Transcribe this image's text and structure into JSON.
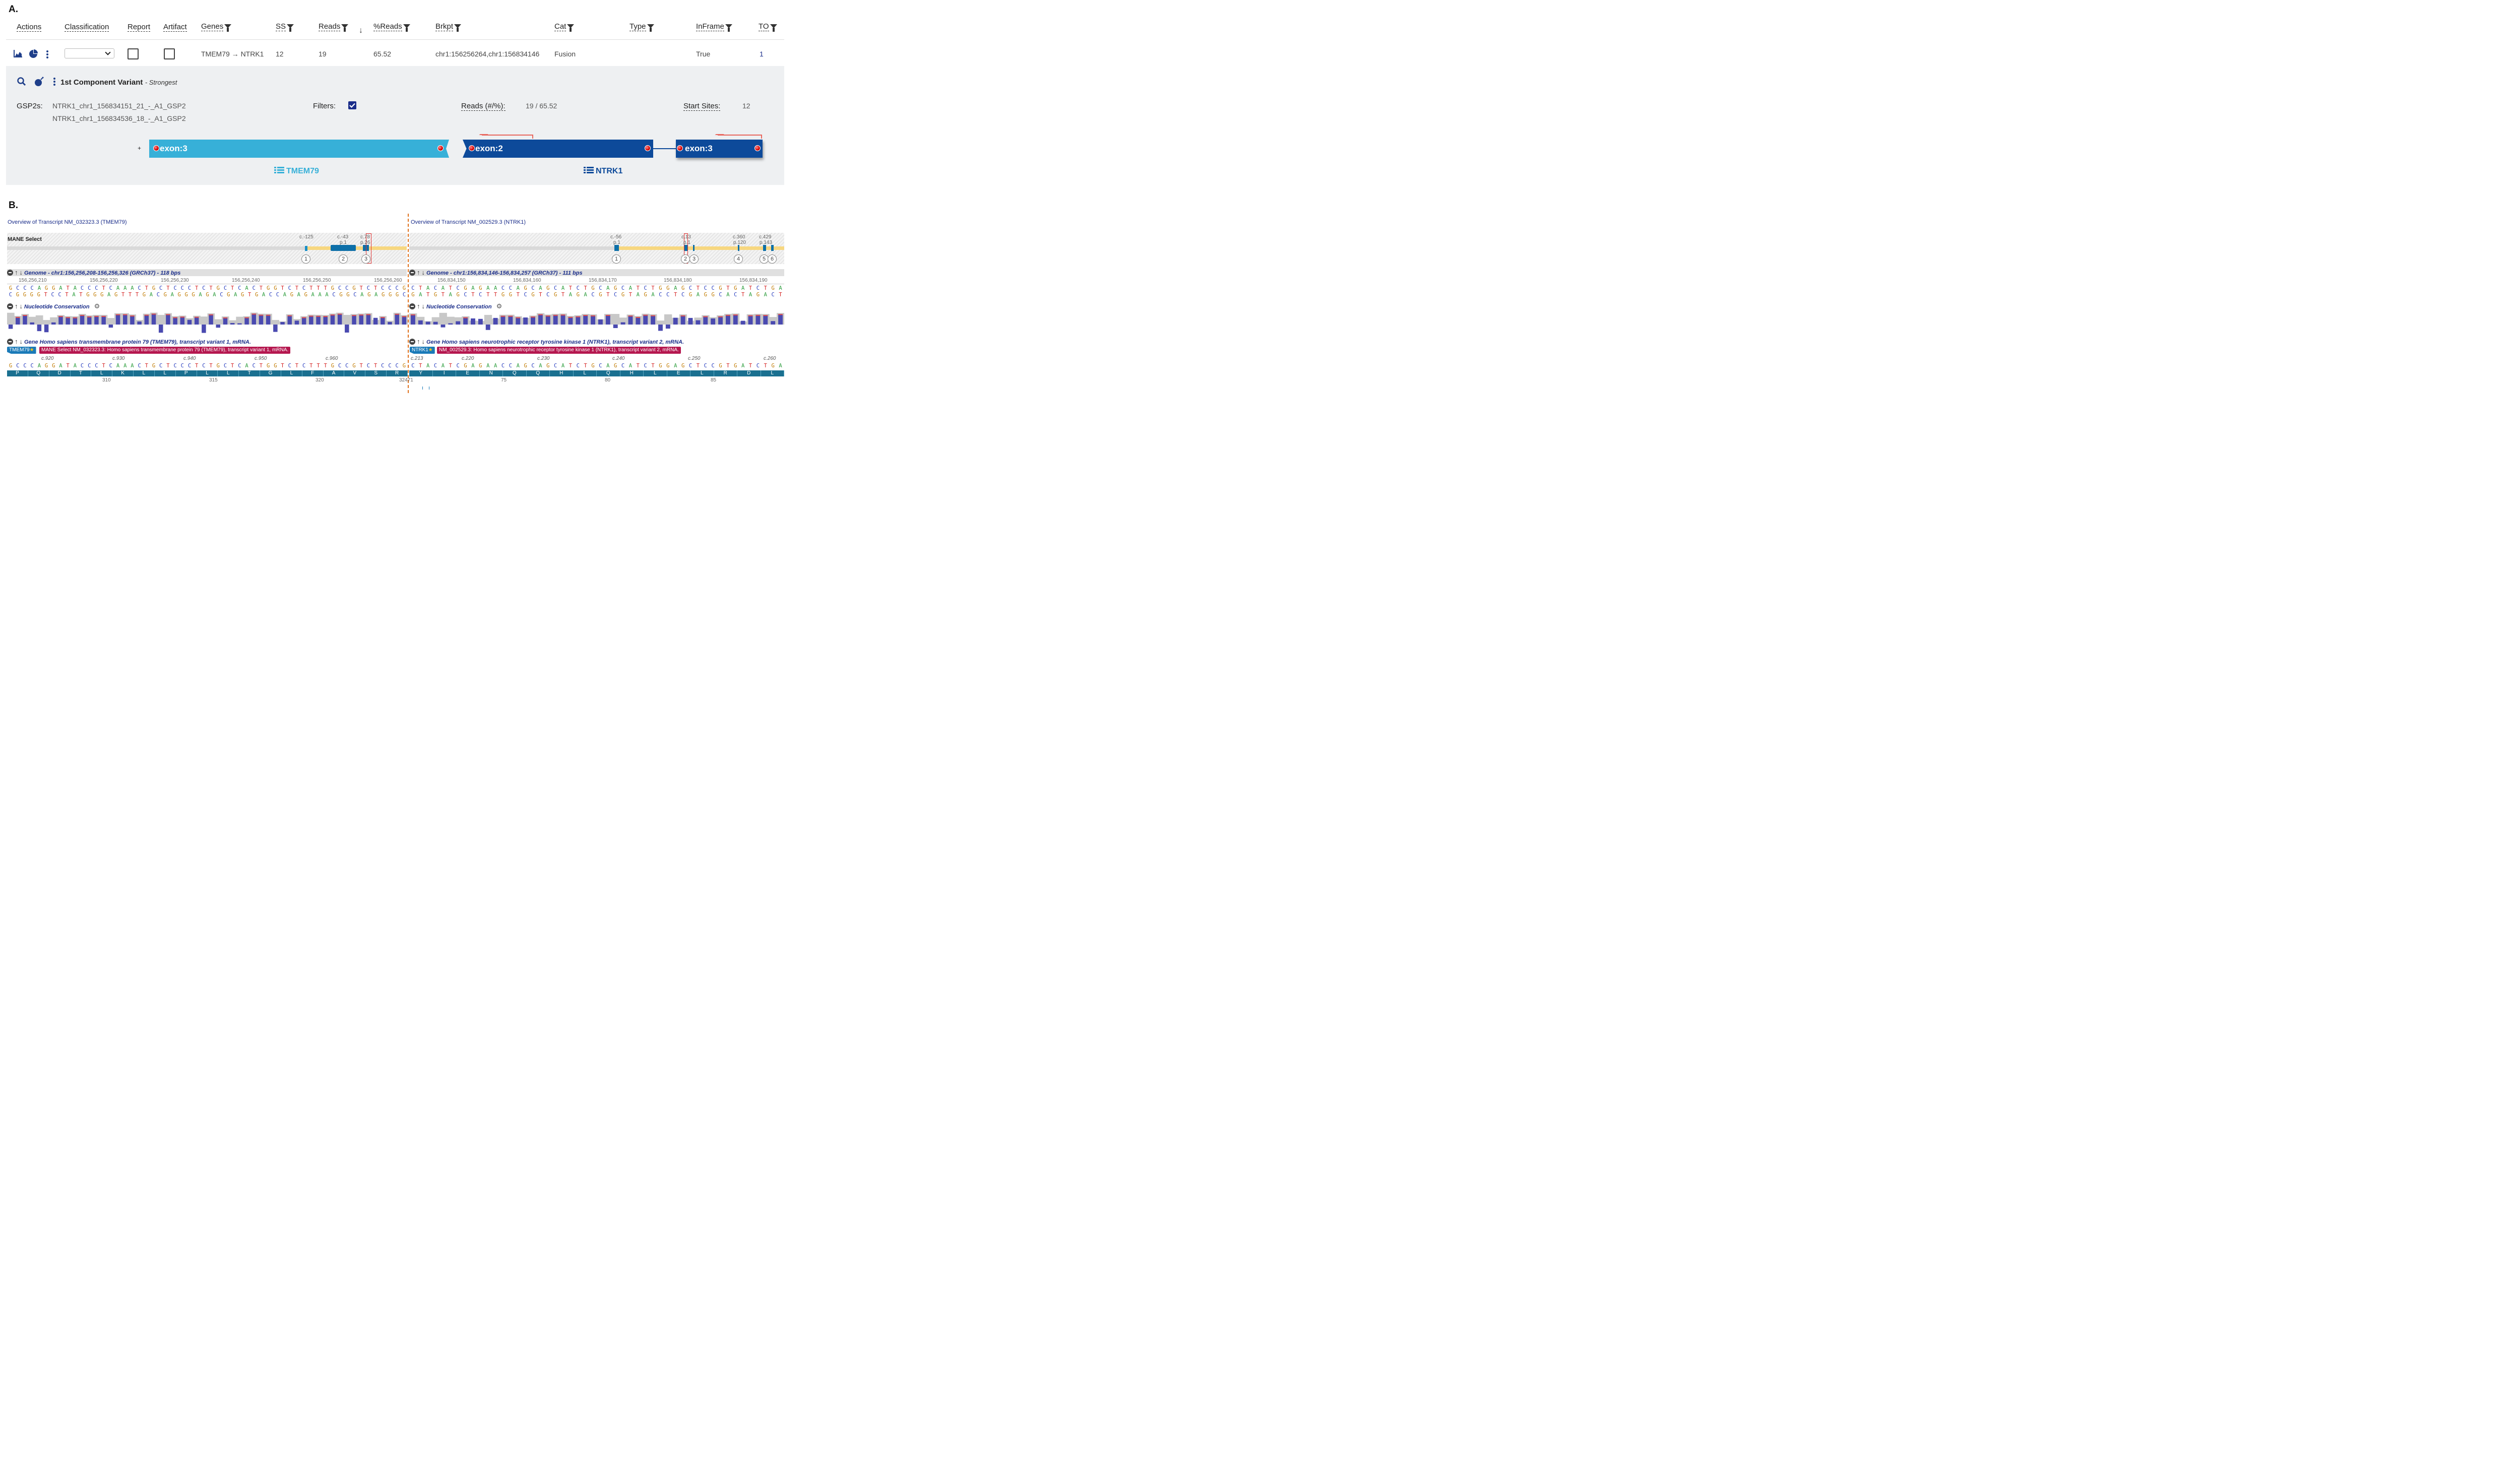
{
  "colors": {
    "tmem79_blue": "#37b0d8",
    "ntrk1_blue": "#0d4a9a",
    "red_dot": "#d40000",
    "mane_yellow": "#f7d780",
    "transcript_blue": "#1a7090",
    "conservation_gray": "#c8c8c8",
    "conservation_bar": "#4a4ab0",
    "tag_magenta": "#b5174f",
    "junction_orange": "#e0701a"
  },
  "panelA": {
    "label": "A.",
    "headers": {
      "actions": "Actions",
      "classification": "Classification",
      "report": "Report",
      "artifact": "Artifact",
      "genes": "Genes",
      "ss": "SS",
      "reads": "Reads",
      "sort_arrow": "↓",
      "pct_reads": "%Reads",
      "brkpt": "Brkpt",
      "cat": "Cat",
      "type": "Type",
      "inframe": "InFrame",
      "to": "TO"
    },
    "row": {
      "genes": "TMEM79 → NTRK1",
      "ss": "12",
      "reads": "19",
      "pct_reads": "65.52",
      "brkpt": "chr1:156256264,chr1:156834146",
      "cat": "Fusion",
      "type": "",
      "inframe": "True",
      "to": "1"
    },
    "component": {
      "title": "1st Component Variant",
      "subtitle": "- Strongest",
      "gsp2_label": "GSP2s:",
      "gsp2_1": "NTRK1_chr1_156834151_21_-_A1_GSP2",
      "gsp2_2": "NTRK1_chr1_156834536_18_-_A1_GSP2",
      "filters_label": "Filters:",
      "reads_label": "Reads (#/%):",
      "reads_value": "19 / 65.52",
      "start_label": "Start Sites:",
      "start_value": "12",
      "strand": "+",
      "exon_tmem79": "exon:3",
      "exon_ntrk1_a": "exon:2",
      "exon_ntrk1_b": "exon:3",
      "gene_left": "TMEM79",
      "gene_right": "NTRK1"
    }
  },
  "panelB": {
    "label": "B.",
    "left": {
      "overview": "Overview of Transcript NM_032323.3 (TMEM79)",
      "mane": "MANE Select",
      "cpos": [
        "c.-125",
        "c.-43",
        "c.78"
      ],
      "ppos": [
        "p.1",
        "p.26"
      ],
      "exons": [
        "1",
        "2",
        "3"
      ],
      "genome_hdr": "Genome - chr1:156,256,208-156,256,326 (GRCh37) - 118 bps",
      "ruler": [
        "156,256,210",
        "156,256,220",
        "156,256,230",
        "156,256,240",
        "156,256,250",
        "156,256,260"
      ],
      "seq_top": "GCCCAGGATACCCTCAAACTGCTCCCTCTGCTCACTGGTCTCTTTGCCGTCTCCCG",
      "seq_bot": "CGGGGTCCTATGGGAGTTTGACGAGGGAGACGAGTGACCAGAGAAACGGCAGAGGGC",
      "cons_hdr": "Nucleotide Conservation",
      "gene_hdr": "Gene Homo sapiens transmembrane protein 79 (TMEM79), transcript variant 1, mRNA.",
      "gene_tag": "TMEM79",
      "star": "★",
      "tx_tag": "MANE Select NM_032323.3: Homo sapiens transmembrane protein 79 (TMEM79), transcript variant 1, mRNA.",
      "c_ruler": [
        "c.920",
        "c.930",
        "c.940",
        "c.950",
        "c.960"
      ],
      "seq_tx": "GCCCAGGATACCCTCAAACTGCTCCCTCTGCTCACTGGTCTCTTTGCCGTCTCCCG",
      "aa": [
        "P",
        "Q",
        "D",
        "T",
        "L",
        "K",
        "L",
        "L",
        "P",
        "L",
        "L",
        "T",
        "G",
        "L",
        "F",
        "A",
        "V",
        "S",
        "R"
      ],
      "aa_pos": [
        "310",
        "315",
        "320",
        "32471"
      ]
    },
    "right": {
      "overview": "Overview of Transcript NM_002529.3 (NTRK1)",
      "cpos": [
        "c.-56",
        "c.13",
        "c.360",
        "c.429"
      ],
      "ppos": [
        "p.1",
        "p.1",
        "p.120",
        "p.143"
      ],
      "exons": [
        "1",
        "2",
        "3",
        "4",
        "5",
        "6"
      ],
      "genome_hdr": "Genome - chr1:156,834,146-156,834,257 (GRCh37) - 111 bps",
      "ruler": [
        "156,834,150",
        "156,834,160",
        "156,834,170",
        "156,834,180",
        "156,834,190"
      ],
      "seq_top": "CTACATCGAGAACCAGCAGCATCTGCAGCATCTGGAGCTCCGTGATCTGA",
      "seq_bot": "GATGTAGCTCTTGGTCGTCGTAGACGTCGTAGACCTCGAGGCACTAGACT",
      "cons_hdr": "Nucleotide Conservation",
      "gene_hdr": "Gene Homo sapiens neurotrophic receptor tyrosine kinase 1 (NTRK1), transcript variant 2, mRNA.",
      "gene_tag": "NTRK1",
      "star": "★",
      "tx_tag": "NM_002529.3: Homo sapiens neurotrophic receptor tyrosine kinase 1 (NTRK1), transcript variant 2, mRNA.",
      "c_ruler": [
        "c.213",
        "c.220",
        "c.230",
        "c.240",
        "c.250",
        "c.260"
      ],
      "seq_tx": "CTACATCGAGAACCAGCAGCATCTGCAGCATCTGGAGCTCCGTGATCTGA",
      "aa": [
        "Y",
        "I",
        "E",
        "N",
        "Q",
        "Q",
        "H",
        "L",
        "Q",
        "H",
        "L",
        "E",
        "L",
        "R",
        "D",
        "L"
      ],
      "aa_pos": [
        "75",
        "80",
        "85"
      ]
    }
  }
}
